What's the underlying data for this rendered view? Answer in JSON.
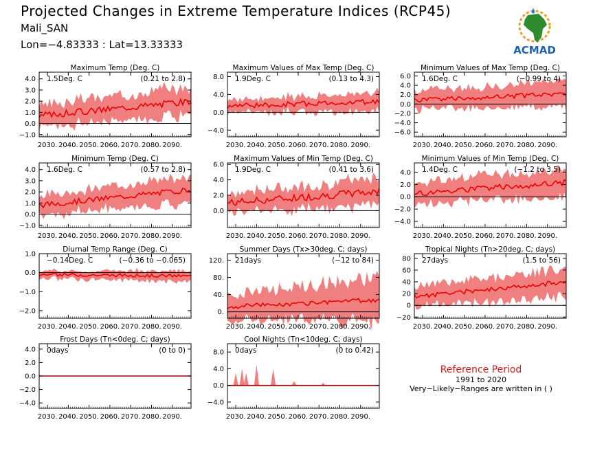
{
  "header": {
    "title": "Projected Changes in Extreme Temperature Indices (RCP45)",
    "station": "Mali_SAN",
    "coords": "Lon=−4.83333 : Lat=13.33333"
  },
  "logo": {
    "text": "ACMAD",
    "icon": "africa-map-icon"
  },
  "reference": {
    "title": "Reference Period",
    "years": "1991 to 2020",
    "note": "Very−Likely−Ranges are written in ( )"
  },
  "colors": {
    "band": "#f08080",
    "line": "#ee0000",
    "zero": "#000000"
  },
  "chart_data": [
    {
      "type": "area",
      "title": "Maximum Temp (Deg. C)",
      "summary": "1.5Deg. C",
      "range": "(0.21 to 2.8)",
      "ylim": [
        -1.2,
        4.6
      ],
      "yticks": [
        "4.0",
        "3.0",
        "2.0",
        "1.0",
        "0.0",
        "−1.0"
      ],
      "ytick_values": [
        4,
        3,
        2,
        1,
        0,
        -1
      ],
      "x_range": [
        2026,
        2099
      ],
      "xticks": [
        "2030.",
        "2040.",
        "2050.",
        "2060.",
        "2070.",
        "2080.",
        "2090."
      ],
      "trend": [
        0.7,
        2.0
      ],
      "spread": [
        1.0,
        1.4
      ],
      "noise": 0.3
    },
    {
      "type": "area",
      "title": "Maximum Values of Max Temp (Deg. C)",
      "summary": "1.9Deg. C",
      "range": "(0.13 to 4.3)",
      "ylim": [
        -5.5,
        9.0
      ],
      "yticks": [
        "8.0",
        "4.0",
        "0.0",
        "−4.0"
      ],
      "ytick_values": [
        8,
        4,
        0,
        -4
      ],
      "x_range": [
        2026,
        2099
      ],
      "xticks": [
        "2030.",
        "2040.",
        "2050.",
        "2060.",
        "2070.",
        "2080.",
        "2090."
      ],
      "trend": [
        1.4,
        2.4
      ],
      "spread": [
        1.5,
        2.2
      ],
      "noise": 0.6
    },
    {
      "type": "area",
      "title": "Minimum Values of Max Temp (Deg. C)",
      "summary": "1.6Deg. C",
      "range": "(−0.99 to 4)",
      "ylim": [
        -7.0,
        6.8
      ],
      "yticks": [
        "6.0",
        "4.0",
        "2.0",
        "0.0",
        "−2.0",
        "−4.0",
        "−6.0"
      ],
      "ytick_values": [
        6,
        4,
        2,
        0,
        -2,
        -4,
        -6
      ],
      "x_range": [
        2026,
        2099
      ],
      "xticks": [
        "2030.",
        "2040.",
        "2050.",
        "2060.",
        "2070.",
        "2080.",
        "2090."
      ],
      "trend": [
        0.8,
        2.2
      ],
      "spread": [
        2.0,
        2.8
      ],
      "noise": 0.5
    },
    {
      "type": "area",
      "title": "Minimum Temp (Deg. C)",
      "summary": "1.6Deg. C",
      "range": "(0.57 to 2.8)",
      "ylim": [
        -1.2,
        4.6
      ],
      "yticks": [
        "4.0",
        "3.0",
        "2.0",
        "1.0",
        "0.0",
        "−1.0"
      ],
      "ytick_values": [
        4,
        3,
        2,
        1,
        0,
        -1
      ],
      "x_range": [
        2026,
        2099
      ],
      "xticks": [
        "2030.",
        "2040.",
        "2050.",
        "2060.",
        "2070.",
        "2080.",
        "2090."
      ],
      "trend": [
        0.8,
        2.2
      ],
      "spread": [
        0.9,
        1.3
      ],
      "noise": 0.25
    },
    {
      "type": "area",
      "title": "Maximum Values of Min Temp (Deg. C)",
      "summary": "1.9Deg. C",
      "range": "(0.41 to 3.6)",
      "ylim": [
        -2.2,
        6.2
      ],
      "yticks": [
        "6.0",
        "4.0",
        "2.0",
        "0.0"
      ],
      "ytick_values": [
        6,
        4,
        2,
        0
      ],
      "x_range": [
        2026,
        2099
      ],
      "xticks": [
        "2030.",
        "2040.",
        "2050.",
        "2060.",
        "2070.",
        "2080.",
        "2090."
      ],
      "trend": [
        1.0,
        2.5
      ],
      "spread": [
        1.3,
        1.8
      ],
      "noise": 0.5
    },
    {
      "type": "area",
      "title": "Minimum Values of Min Temp (Deg. C)",
      "summary": "1.4Deg. C",
      "range": "(−1.2 to 3.5)",
      "ylim": [
        -5.0,
        5.5
      ],
      "yticks": [
        "4.0",
        "2.0",
        "0.0",
        "−2.0",
        "−4.0"
      ],
      "ytick_values": [
        4,
        2,
        0,
        -2,
        -4
      ],
      "x_range": [
        2026,
        2099
      ],
      "xticks": [
        "2030.",
        "2040.",
        "2050.",
        "2060.",
        "2070.",
        "2080.",
        "2090."
      ],
      "trend": [
        0.5,
        2.3
      ],
      "spread": [
        1.8,
        2.4
      ],
      "noise": 0.5
    },
    {
      "type": "area",
      "title": "Diurnal Temp Range (Deg. C)",
      "summary": "−0.14Deg. C",
      "range": "(−0.36 to −0.065)",
      "ylim": [
        -2.4,
        1.0
      ],
      "yticks": [
        "1.0",
        "0.0",
        "−1.0",
        "−2.0"
      ],
      "ytick_values": [
        1,
        0,
        -1,
        -2
      ],
      "x_range": [
        2026,
        2099
      ],
      "xticks": [
        "2030.",
        "2040.",
        "2050.",
        "2060.",
        "2070.",
        "2080.",
        "2090."
      ],
      "trend": [
        -0.1,
        -0.18
      ],
      "spread": [
        0.2,
        0.3
      ],
      "noise": 0.08
    },
    {
      "type": "area",
      "title": "Summer Days (Tx>30deg. C; days)",
      "summary": "21days",
      "range": "(−12 to 84)",
      "ylim": [
        -15,
        135
      ],
      "yticks": [
        "120.",
        "80.",
        "40.",
        "0."
      ],
      "ytick_values": [
        120,
        80,
        40,
        0
      ],
      "x_range": [
        2026,
        2099
      ],
      "xticks": [
        "2030.",
        "2040.",
        "2050.",
        "2060.",
        "2070.",
        "2080.",
        "2090."
      ],
      "trend": [
        12,
        28
      ],
      "spread": [
        30,
        55
      ],
      "noise": 5
    },
    {
      "type": "area",
      "title": "Tropical Nights (Tn>20deg. C; days)",
      "summary": "27days",
      "range": "(1.5 to 56)",
      "ylim": [
        -22,
        88
      ],
      "yticks": [
        "80",
        "60",
        "40",
        "20",
        "0",
        "−20"
      ],
      "ytick_values": [
        80,
        60,
        40,
        20,
        0,
        -20
      ],
      "x_range": [
        2026,
        2099
      ],
      "xticks": [
        "2030.",
        "2040.",
        "2050.",
        "2060.",
        "2070.",
        "2080.",
        "2090."
      ],
      "trend": [
        15,
        40
      ],
      "spread": [
        18,
        25
      ],
      "noise": 4
    },
    {
      "type": "area",
      "title": "Frost Days (Tn<0deg. C; days)",
      "summary": "0days",
      "range": "(0 to 0)",
      "ylim": [
        -4.8,
        4.8
      ],
      "yticks": [
        "4.0",
        "2.0",
        "0.0",
        "−2.0",
        "−4.0"
      ],
      "ytick_values": [
        4,
        2,
        0,
        -2,
        -4
      ],
      "x_range": [
        2026,
        2099
      ],
      "xticks": [
        "2030.",
        "2040.",
        "2050.",
        "2060.",
        "2070.",
        "2080.",
        "2090."
      ],
      "trend": [
        0,
        0
      ],
      "spread": [
        0,
        0
      ],
      "noise": 0
    },
    {
      "type": "area",
      "title": "Cool Nights (Tn<10deg. C; days)",
      "summary": "0days",
      "range": "(0 to 0.42)",
      "ylim": [
        -5.5,
        10
      ],
      "yticks": [
        "8.0",
        "4.0",
        "0.0",
        "−4.0"
      ],
      "ytick_values": [
        8,
        4,
        0,
        -4
      ],
      "x_range": [
        2026,
        2099
      ],
      "xticks": [
        "2030.",
        "2040.",
        "2050.",
        "2060.",
        "2070.",
        "2080.",
        "2090."
      ],
      "trend": [
        0,
        0
      ],
      "spread": [
        0,
        0
      ],
      "noise": 0,
      "spikes": [
        [
          2030,
          3
        ],
        [
          2033,
          4
        ],
        [
          2035,
          3
        ],
        [
          2040,
          5
        ],
        [
          2048,
          4
        ],
        [
          2058,
          1
        ],
        [
          2072,
          0.6
        ]
      ]
    }
  ]
}
